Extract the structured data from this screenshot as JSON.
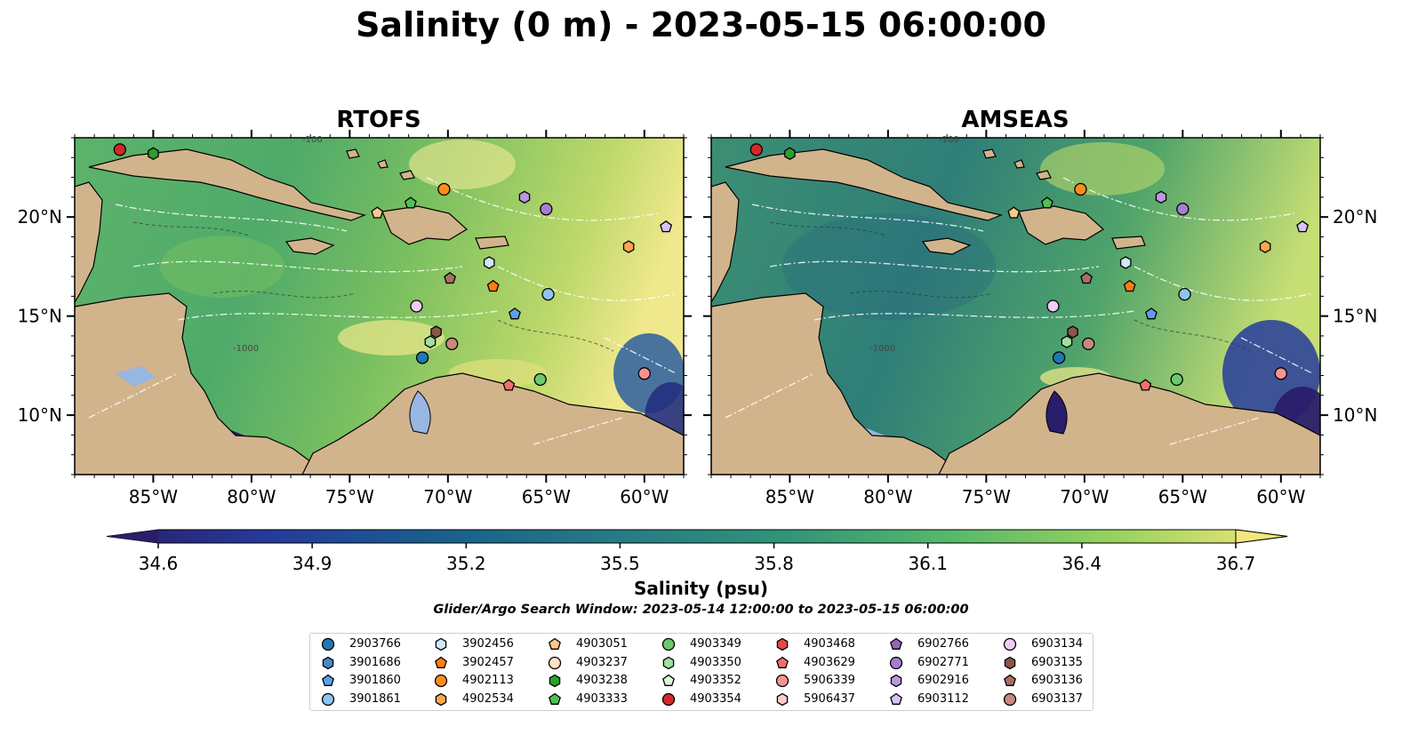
{
  "title": "Salinity (0 m) - 2023-05-15 06:00:00",
  "panels": [
    {
      "title": "RTOFS",
      "model": "rtofs"
    },
    {
      "title": "AMSEAS",
      "model": "amseas"
    }
  ],
  "map": {
    "lon_range": [
      -89,
      -58
    ],
    "lat_range": [
      7,
      24
    ],
    "x_ticks": [
      "85°W",
      "80°W",
      "75°W",
      "70°W",
      "65°W",
      "60°W"
    ],
    "y_ticks": [
      "20°N",
      "15°N",
      "10°N"
    ],
    "contour_labels": [
      "-100",
      "-1000"
    ],
    "land_color": "#d2b48c",
    "ocean_background_color": "#97b6e1"
  },
  "colorbar": {
    "label": "Salinity (psu)",
    "min": 34.6,
    "max": 36.7,
    "ticks": [
      "34.6",
      "34.9",
      "35.2",
      "35.5",
      "35.8",
      "36.1",
      "36.4",
      "36.7"
    ],
    "extend": "both",
    "colormap": "haline"
  },
  "search_window": "Glider/Argo Search Window: 2023-05-14 12:00:00 to 2023-05-15 06:00:00",
  "chart_data": {
    "type": "scatter",
    "title": "Salinity (0 m) - 2023-05-15 06:00:00",
    "xlabel": "",
    "ylabel": "",
    "xlim": [
      -89,
      -58
    ],
    "ylim": [
      7,
      24
    ],
    "series": [
      {
        "name": "2903766",
        "marker": "circle",
        "color": "#1f77b4",
        "lon": -71.3,
        "lat": 12.9
      },
      {
        "name": "3901686",
        "marker": "hexagon",
        "color": "#4a86c8",
        "lon": null,
        "lat": null
      },
      {
        "name": "3901860",
        "marker": "pentagon",
        "color": "#5aa0e6",
        "lon": -66.6,
        "lat": 15.1
      },
      {
        "name": "3901861",
        "marker": "circle",
        "color": "#8ec4f0",
        "lon": -64.9,
        "lat": 16.1
      },
      {
        "name": "3902456",
        "marker": "hexagon",
        "color": "#cfe8fa",
        "lon": -67.9,
        "lat": 17.7
      },
      {
        "name": "3902457",
        "marker": "pentagon",
        "color": "#ff7f0e",
        "lon": -67.7,
        "lat": 16.5
      },
      {
        "name": "4902113",
        "marker": "circle",
        "color": "#ff8c1a",
        "lon": -70.2,
        "lat": 21.4
      },
      {
        "name": "4902534",
        "marker": "hexagon",
        "color": "#ffa64d",
        "lon": -60.8,
        "lat": 18.5
      },
      {
        "name": "4903051",
        "marker": "pentagon",
        "color": "#fcc98c",
        "lon": -73.6,
        "lat": 20.2
      },
      {
        "name": "4903237",
        "marker": "circle",
        "color": "#ffe2c2",
        "lon": null,
        "lat": null
      },
      {
        "name": "4903238",
        "marker": "hexagon",
        "color": "#2ca02c",
        "lon": -85.0,
        "lat": 23.2
      },
      {
        "name": "4903333",
        "marker": "pentagon",
        "color": "#50c050",
        "lon": -71.9,
        "lat": 20.7
      },
      {
        "name": "4903349",
        "marker": "circle",
        "color": "#6cc96c",
        "lon": -65.3,
        "lat": 11.8
      },
      {
        "name": "4903350",
        "marker": "hexagon",
        "color": "#a0e0a0",
        "lon": -70.9,
        "lat": 13.7
      },
      {
        "name": "4903352",
        "marker": "pentagon",
        "color": "#d8f7d8",
        "lon": null,
        "lat": null
      },
      {
        "name": "4903354",
        "marker": "circle",
        "color": "#d62728",
        "lon": -86.7,
        "lat": 23.4
      },
      {
        "name": "4903468",
        "marker": "hexagon",
        "color": "#e34a4a",
        "lon": null,
        "lat": null
      },
      {
        "name": "4903629",
        "marker": "pentagon",
        "color": "#f07070",
        "lon": -66.9,
        "lat": 11.5
      },
      {
        "name": "5906339",
        "marker": "circle",
        "color": "#f59393",
        "lon": -60.0,
        "lat": 12.1
      },
      {
        "name": "5906437",
        "marker": "hexagon",
        "color": "#fccaca",
        "lon": null,
        "lat": null
      },
      {
        "name": "6902766",
        "marker": "pentagon",
        "color": "#9467bd",
        "lon": null,
        "lat": null
      },
      {
        "name": "6902771",
        "marker": "circle",
        "color": "#a67dd1",
        "lon": -65.0,
        "lat": 20.4
      },
      {
        "name": "6902916",
        "marker": "hexagon",
        "color": "#bb97e0",
        "lon": -66.1,
        "lat": 21.0
      },
      {
        "name": "6903112",
        "marker": "pentagon",
        "color": "#d9c2f5",
        "lon": -58.9,
        "lat": 19.5
      },
      {
        "name": "6903134",
        "marker": "circle",
        "color": "#f3ccf5",
        "lon": -71.6,
        "lat": 15.5
      },
      {
        "name": "6903135",
        "marker": "hexagon",
        "color": "#8c564b",
        "lon": -70.6,
        "lat": 14.2
      },
      {
        "name": "6903136",
        "marker": "pentagon",
        "color": "#a86f63",
        "lon": -69.9,
        "lat": 16.9
      },
      {
        "name": "6903137",
        "marker": "circle",
        "color": "#c9887d",
        "lon": -69.8,
        "lat": 13.6
      }
    ]
  }
}
